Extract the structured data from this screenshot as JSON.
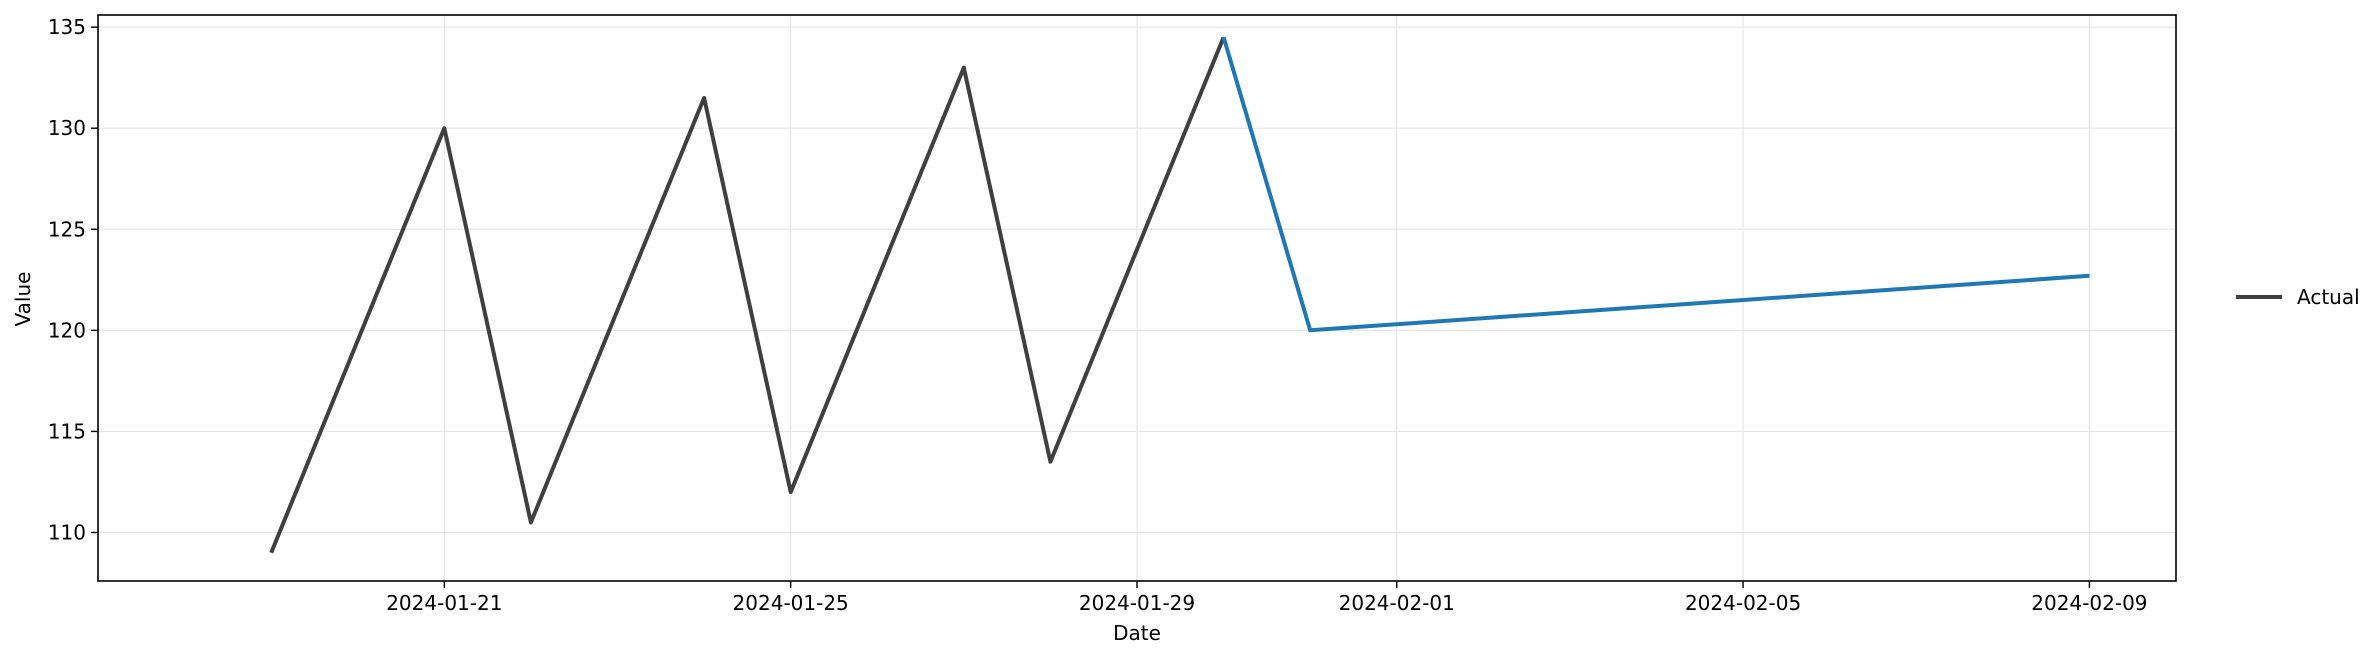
{
  "chart_data": {
    "type": "line",
    "title": "",
    "xlabel": "Date",
    "ylabel": "Value",
    "x_ticks": [
      "2024-01-21",
      "2024-01-25",
      "2024-01-29",
      "2024-02-01",
      "2024-02-05",
      "2024-02-09"
    ],
    "y_ticks": [
      110,
      115,
      120,
      125,
      130,
      135
    ],
    "xlim": [
      "2024-01-17",
      "2024-02-10"
    ],
    "ylim": [
      107.6,
      135.6
    ],
    "grid": true,
    "legend_position": "right",
    "series": [
      {
        "name": "Actual",
        "color": "#3f3f3f",
        "points": [
          {
            "x": "2024-01-19",
            "y": 109.0
          },
          {
            "x": "2024-01-21",
            "y": 130.0
          },
          {
            "x": "2024-01-22",
            "y": 110.5
          },
          {
            "x": "2024-01-24",
            "y": 131.5
          },
          {
            "x": "2024-01-25",
            "y": 112.0
          },
          {
            "x": "2024-01-27",
            "y": 133.0
          },
          {
            "x": "2024-01-28",
            "y": 113.5
          },
          {
            "x": "2024-01-30",
            "y": 134.5
          }
        ]
      },
      {
        "color": "#1f77b4",
        "points": [
          {
            "x": "2024-01-30",
            "y": 134.5
          },
          {
            "x": "2024-01-31",
            "y": 120.0
          },
          {
            "x": "2024-02-09",
            "y": 122.7
          }
        ]
      }
    ]
  }
}
